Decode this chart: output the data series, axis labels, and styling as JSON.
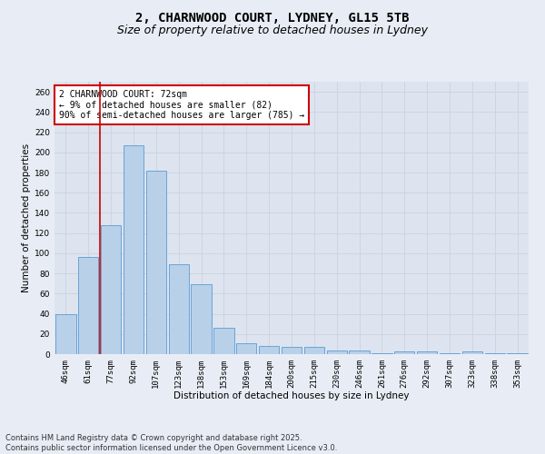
{
  "title_line1": "2, CHARNWOOD COURT, LYDNEY, GL15 5TB",
  "title_line2": "Size of property relative to detached houses in Lydney",
  "xlabel": "Distribution of detached houses by size in Lydney",
  "ylabel": "Number of detached properties",
  "categories": [
    "46sqm",
    "61sqm",
    "77sqm",
    "92sqm",
    "107sqm",
    "123sqm",
    "138sqm",
    "153sqm",
    "169sqm",
    "184sqm",
    "200sqm",
    "215sqm",
    "230sqm",
    "246sqm",
    "261sqm",
    "276sqm",
    "292sqm",
    "307sqm",
    "323sqm",
    "338sqm",
    "353sqm"
  ],
  "values": [
    40,
    96,
    128,
    207,
    182,
    89,
    69,
    26,
    11,
    8,
    7,
    7,
    4,
    4,
    1,
    3,
    3,
    1,
    3,
    1,
    1
  ],
  "bar_color": "#b8d0e8",
  "bar_edge_color": "#5b9bd5",
  "vline_x_index": 1.5,
  "vline_color": "#cc0000",
  "annotation_text": "2 CHARNWOOD COURT: 72sqm\n← 9% of detached houses are smaller (82)\n90% of semi-detached houses are larger (785) →",
  "annotation_box_color": "#cc0000",
  "ylim": [
    0,
    270
  ],
  "yticks": [
    0,
    20,
    40,
    60,
    80,
    100,
    120,
    140,
    160,
    180,
    200,
    220,
    240,
    260
  ],
  "grid_color": "#ccd5e0",
  "background_color": "#dde4ef",
  "fig_background_color": "#e8edf5",
  "footer_line1": "Contains HM Land Registry data © Crown copyright and database right 2025.",
  "footer_line2": "Contains public sector information licensed under the Open Government Licence v3.0.",
  "title_fontsize": 10,
  "subtitle_fontsize": 9,
  "axis_label_fontsize": 7.5,
  "tick_fontsize": 6.5,
  "annotation_fontsize": 7,
  "footer_fontsize": 6
}
